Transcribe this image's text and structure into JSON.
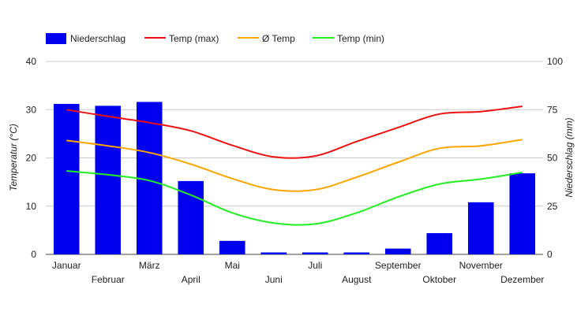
{
  "chart_data": {
    "type": "bar",
    "categories": [
      "Januar",
      "Februar",
      "März",
      "April",
      "Mai",
      "Juni",
      "Juli",
      "August",
      "September",
      "Oktober",
      "November",
      "Dezember"
    ],
    "legend_position": "top-left",
    "grid": true,
    "bars": {
      "name": "Niederschlag",
      "axis": "right",
      "color": "#0000ee",
      "values": [
        78,
        77,
        79,
        38,
        7,
        1,
        1,
        1,
        3,
        11,
        27,
        42
      ]
    },
    "series": [
      {
        "name": "Temp (max)",
        "type": "line",
        "axis": "left",
        "color": "#ee1111",
        "values": [
          30.0,
          28.6,
          27.3,
          25.6,
          22.6,
          20.2,
          20.4,
          23.4,
          26.3,
          29.1,
          29.6,
          30.7
        ]
      },
      {
        "name": "Ø Temp",
        "type": "line",
        "axis": "left",
        "color": "#ffa500",
        "values": [
          23.6,
          22.5,
          21.1,
          18.7,
          15.7,
          13.4,
          13.4,
          16.0,
          19.1,
          22.0,
          22.5,
          23.8
        ]
      },
      {
        "name": "Temp (min)",
        "type": "line",
        "axis": "left",
        "color": "#22ee22",
        "values": [
          17.3,
          16.5,
          15.3,
          12.3,
          8.6,
          6.5,
          6.3,
          8.6,
          11.9,
          14.6,
          15.6,
          17.0
        ]
      }
    ],
    "left_axis": {
      "label": "Temperatur (°C)",
      "min": 0,
      "max": 40,
      "ticks": [
        0,
        10,
        20,
        30,
        40
      ]
    },
    "right_axis": {
      "label": "Niederschlag (mm)",
      "min": 0,
      "max": 100,
      "ticks": [
        0,
        25,
        50,
        75,
        100
      ]
    }
  }
}
